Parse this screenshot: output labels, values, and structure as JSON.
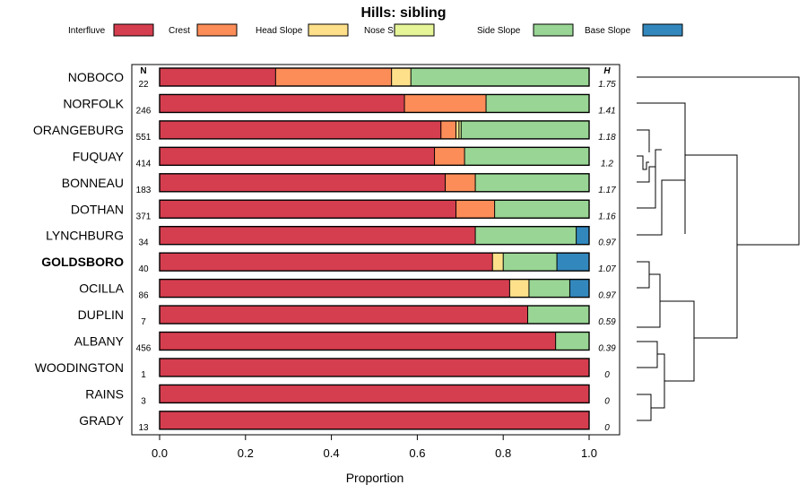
{
  "chart_data": {
    "type": "bar",
    "orientation": "horizontal",
    "stacked": true,
    "title": "Hills: sibling",
    "xlabel": "Proportion",
    "xlim": [
      0,
      1
    ],
    "xticks": [
      "0.0",
      "0.2",
      "0.4",
      "0.6",
      "0.8",
      "1.0"
    ],
    "n_header": "N",
    "h_header": "H",
    "highlight": "GOLDSBORO",
    "legend": [
      {
        "name": "Interfluve",
        "color": "#d53e4f"
      },
      {
        "name": "Crest",
        "color": "#fc8d59"
      },
      {
        "name": "Head Slope",
        "color": "#fee08b"
      },
      {
        "name": "Nose Slope",
        "color": "#e6f598"
      },
      {
        "name": "Side Slope",
        "color": "#99d594"
      },
      {
        "name": "Base Slope",
        "color": "#3288bd"
      }
    ],
    "categories": [
      "NOBOCO",
      "NORFOLK",
      "ORANGEBURG",
      "FUQUAY",
      "BONNEAU",
      "DOTHAN",
      "LYNCHBURG",
      "GOLDSBORO",
      "OCILLA",
      "DUPLIN",
      "ALBANY",
      "WOODINGTON",
      "RAINS",
      "GRADY"
    ],
    "n": [
      "22",
      "246",
      "551",
      "414",
      "183",
      "371",
      "34",
      "40",
      "86",
      "7",
      "456",
      "1",
      "3",
      "13"
    ],
    "h": [
      "1.75",
      "1.41",
      "1.18",
      "1.2",
      "1.17",
      "1.16",
      "0.97",
      "1.07",
      "0.97",
      "0.59",
      "0.39",
      "0",
      "0",
      "0"
    ],
    "series": [
      {
        "name": "Interfluve",
        "values": [
          0.27,
          0.57,
          0.655,
          0.64,
          0.665,
          0.69,
          0.735,
          0.775,
          0.815,
          0.857,
          0.922,
          1.0,
          1.0,
          1.0
        ]
      },
      {
        "name": "Crest",
        "values": [
          0.27,
          0.19,
          0.035,
          0.07,
          0.07,
          0.09,
          0,
          0,
          0,
          0,
          0,
          0,
          0,
          0
        ]
      },
      {
        "name": "Head Slope",
        "values": [
          0.045,
          0,
          0.007,
          0,
          0,
          0,
          0,
          0.025,
          0.045,
          0,
          0,
          0,
          0,
          0
        ]
      },
      {
        "name": "Nose Slope",
        "values": [
          0,
          0,
          0.005,
          0,
          0,
          0,
          0,
          0,
          0,
          0,
          0,
          0,
          0,
          0
        ]
      },
      {
        "name": "Side Slope",
        "values": [
          0.415,
          0.24,
          0.298,
          0.29,
          0.265,
          0.22,
          0.235,
          0.125,
          0.095,
          0.143,
          0.078,
          0,
          0,
          0
        ]
      },
      {
        "name": "Base Slope",
        "values": [
          0,
          0,
          0,
          0,
          0,
          0,
          0.03,
          0.075,
          0.045,
          0,
          0,
          0,
          0,
          0
        ]
      }
    ]
  }
}
